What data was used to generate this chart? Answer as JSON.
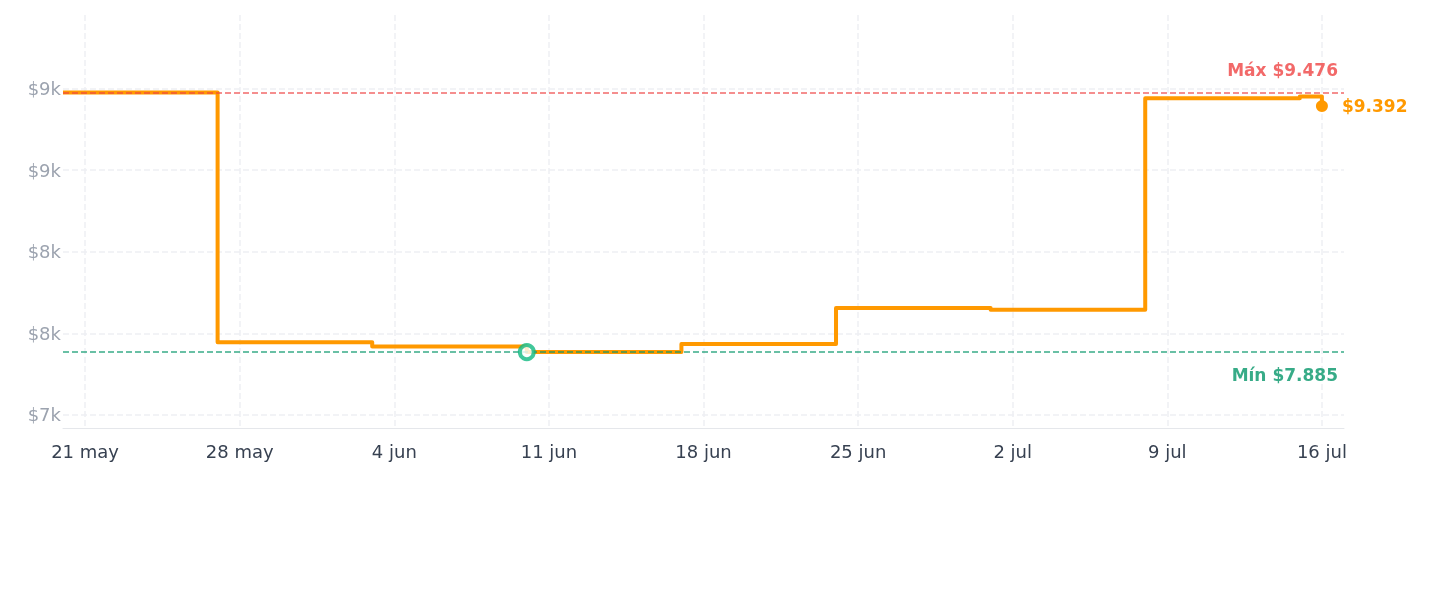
{
  "chart_data": {
    "type": "step",
    "x": [
      "--05-20",
      "--05-27",
      "--06-03",
      "--06-10",
      "--06-17",
      "--06-24",
      "--07-01",
      "--07-08",
      "--07-15",
      "--07-16"
    ],
    "series": [
      {
        "color": "#ff9900",
        "values": [
          9476,
          7945,
          7920,
          7885,
          7935,
          8155,
          8145,
          9440,
          9450,
          9392
        ]
      },
      {
        "type": "scatter",
        "color": "#10b981",
        "x": [
          "--06-10"
        ],
        "values": [
          7885
        ],
        "marker": "circle"
      }
    ],
    "xlim": [
      "--05-20",
      "--07-17"
    ],
    "xticks": [
      {
        "value": "--05-21",
        "label": "21 may"
      },
      {
        "value": "--05-28",
        "label": "28 may"
      },
      {
        "value": "--06-04",
        "label": "4 jun"
      },
      {
        "value": "--06-11",
        "label": "11 jun"
      },
      {
        "value": "--06-18",
        "label": "18 jun"
      },
      {
        "value": "--06-25",
        "label": "25 jun"
      },
      {
        "value": "--07-02",
        "label": "2 jul"
      },
      {
        "value": "--07-09",
        "label": "9 jul"
      },
      {
        "value": "--07-16",
        "label": "16 jul"
      }
    ],
    "ylim": [
      7420,
      9950
    ],
    "yticks": [
      {
        "value": 7500,
        "label": "$7k"
      },
      {
        "value": 8000,
        "label": "$8k"
      },
      {
        "value": 8500,
        "label": "$8k"
      },
      {
        "value": 9000,
        "label": "$9k"
      },
      {
        "value": 9500,
        "label": "$9k"
      }
    ],
    "ref_lines": [
      {
        "axis": "y",
        "value": 9476,
        "label": "Máx $9.476",
        "color": "#ef4444",
        "line_style": "dashed"
      },
      {
        "axis": "y",
        "value": 7885,
        "label": "Mín $7.885",
        "color": "#059669",
        "line_style": "dashed"
      }
    ],
    "annotations": [
      {
        "text": "$9.392",
        "x": "--07-16",
        "y": 9392
      }
    ],
    "grid": true
  }
}
